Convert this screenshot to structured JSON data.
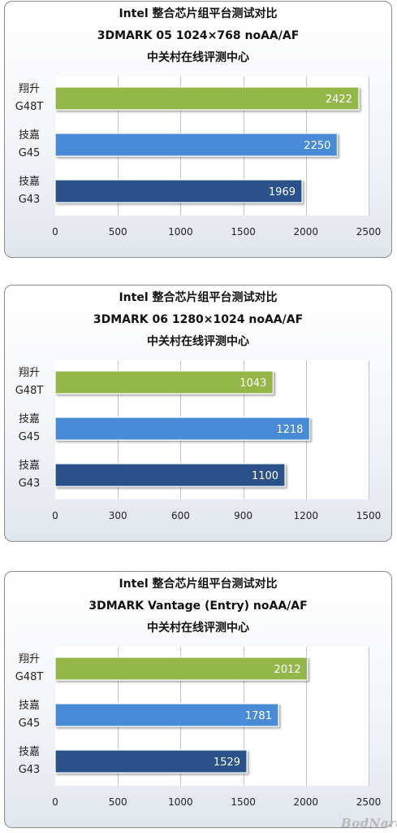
{
  "chart_data": [
    {
      "type": "bar",
      "orientation": "horizontal",
      "title": "Intel 整合芯片组平台测试对比",
      "subtitle": "3DMARK 05 1024×768 noAA/AF",
      "source": "中关村在线评测中心",
      "categories": [
        {
          "line1": "翔升",
          "line2": "G48T"
        },
        {
          "line1": "技嘉",
          "line2": "G45"
        },
        {
          "line1": "技嘉",
          "line2": "G43"
        }
      ],
      "values": [
        2422,
        2250,
        1969
      ],
      "colors": [
        "#94b74a",
        "#4a8bd6",
        "#2a5189"
      ],
      "xlim": [
        0,
        2500
      ],
      "xticks": [
        0,
        500,
        1000,
        1500,
        2000,
        2500
      ],
      "grid": true
    },
    {
      "type": "bar",
      "orientation": "horizontal",
      "title": "Intel 整合芯片组平台测试对比",
      "subtitle": "3DMARK 06 1280×1024 noAA/AF",
      "source": "中关村在线评测中心",
      "categories": [
        {
          "line1": "翔升",
          "line2": "G48T"
        },
        {
          "line1": "技嘉",
          "line2": "G45"
        },
        {
          "line1": "技嘉",
          "line2": "G43"
        }
      ],
      "values": [
        1043,
        1218,
        1100
      ],
      "colors": [
        "#94b74a",
        "#4a8bd6",
        "#2a5189"
      ],
      "xlim": [
        0,
        1500
      ],
      "xticks": [
        0,
        300,
        600,
        900,
        1200,
        1500
      ],
      "grid": true
    },
    {
      "type": "bar",
      "orientation": "horizontal",
      "title": "Intel 整合芯片组平台测试对比",
      "subtitle": "3DMARK Vantage (Entry) noAA/AF",
      "source": "中关村在线评测中心",
      "categories": [
        {
          "line1": "翔升",
          "line2": "G48T"
        },
        {
          "line1": "技嘉",
          "line2": "G45"
        },
        {
          "line1": "技嘉",
          "line2": "G43"
        }
      ],
      "values": [
        2012,
        1781,
        1529
      ],
      "colors": [
        "#94b74a",
        "#4a8bd6",
        "#2a5189"
      ],
      "xlim": [
        0,
        2500
      ],
      "xticks": [
        0,
        500,
        1000,
        1500,
        2000,
        2500
      ],
      "grid": true
    }
  ],
  "watermark": "BodNara"
}
